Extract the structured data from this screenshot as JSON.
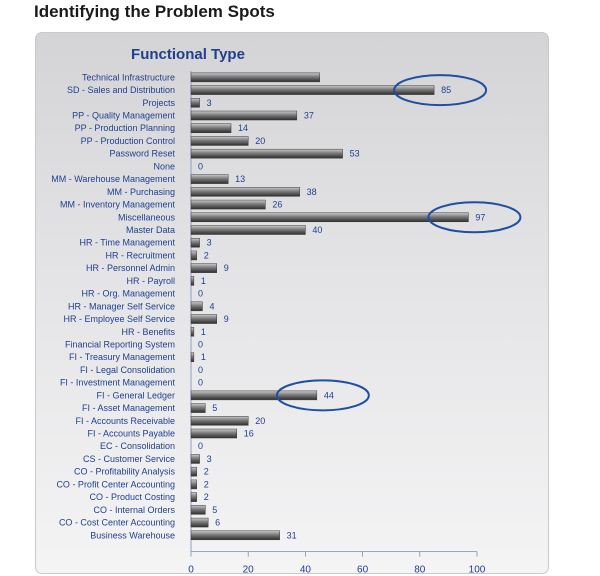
{
  "page": {
    "title": "Identifying the Problem Spots"
  },
  "colors": {
    "bar": "#6e6e6e",
    "text": "#1f3f8f",
    "highlight": "#1f4fa0"
  },
  "chart_data": {
    "type": "bar",
    "orientation": "horizontal",
    "title": "Functional Type",
    "xlim": [
      0,
      100
    ],
    "xticks": [
      0,
      20,
      40,
      60,
      80,
      100
    ],
    "categories": [
      "Technical Infrastructure",
      "SD - Sales and Distribution",
      "Projects",
      "PP - Quality Management",
      "PP - Production Planning",
      "PP - Production Control",
      "Password Reset",
      "None",
      "MM - Warehouse Management",
      "MM - Purchasing",
      "MM - Inventory Management",
      "Miscellaneous",
      "Master Data",
      "HR - Time Management",
      "HR - Recruitment",
      "HR - Personnel Admin",
      "HR - Payroll",
      "HR - Org. Management",
      "HR - Manager Self Service",
      "HR - Employee Self Service",
      "HR - Benefits",
      "Financial Reporting System",
      "FI - Treasury Management",
      "FI - Legal Consolidation",
      "FI - Investment Management",
      "FI - General Ledger",
      "FI - Asset Management",
      "FI - Accounts Receivable",
      "FI - Accounts Payable",
      "EC - Consolidation",
      "CS - Customer Service",
      "CO - Profitability Analysis",
      "CO - Profit Center Accounting",
      "CO - Product Costing",
      "CO - Internal Orders",
      "CO - Cost Center Accounting",
      "Business Warehouse"
    ],
    "values": [
      45,
      85,
      3,
      37,
      14,
      20,
      53,
      0,
      13,
      38,
      26,
      97,
      40,
      3,
      2,
      9,
      1,
      0,
      4,
      9,
      1,
      0,
      1,
      0,
      0,
      44,
      5,
      20,
      16,
      0,
      3,
      2,
      2,
      2,
      5,
      6,
      31
    ],
    "value_labels": [
      "",
      "85",
      "3",
      "37",
      "14",
      "20",
      "53",
      "0",
      "13",
      "38",
      "26",
      "97",
      "40",
      "3",
      "2",
      "9",
      "1",
      "0",
      "4",
      "9",
      "1",
      "0",
      "1",
      "0",
      "0",
      "44",
      "5",
      "20",
      "16",
      "0",
      "3",
      "2",
      "2",
      "2",
      "5",
      "6",
      "31"
    ],
    "highlighted": [
      "SD - Sales and Distribution",
      "Miscellaneous",
      "FI - General Ledger"
    ]
  }
}
